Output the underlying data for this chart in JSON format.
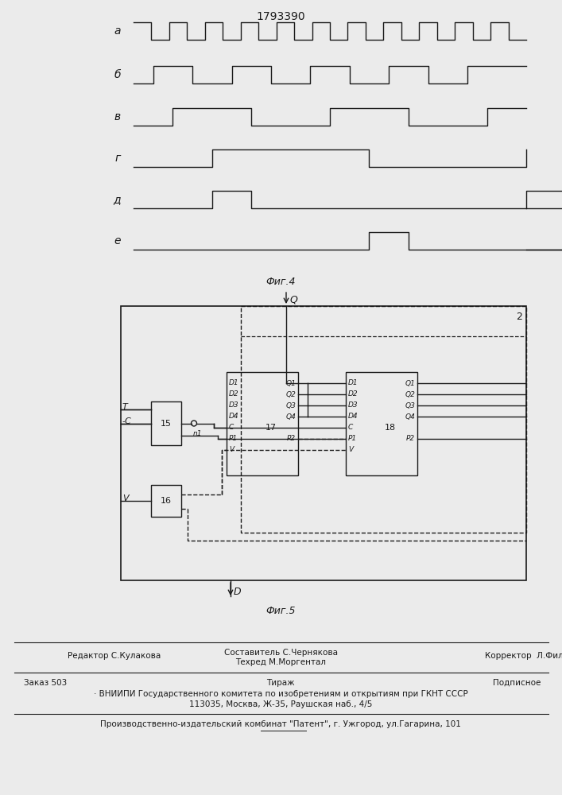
{
  "title": "1793390",
  "fig4_label": "Фиг.4",
  "fig5_label": "Фиг.5",
  "bg_color": "#ebebeb",
  "line_color": "#1a1a1a",
  "footer1_left": "Редактор С.Кулакова",
  "footer1_center1": "Составитель С.Чернякова",
  "footer1_center2": "Техред М.Моргентал",
  "footer1_right": "Корректор  Л.Филь",
  "footer2_left": "Заказ 503",
  "footer2_center": "Тираж",
  "footer2_right": "Подписное",
  "footer3": "· ВНИИПИ Государственного комитета по изобретениям и открытиям при ГКНТ СССР",
  "footer4": "113035, Москва, Ж-35, Раушская наб., 4/5",
  "footer5": "Производственно-издательский комбинат \"Патент\", г. Ужгород, ул.Гагарина, 101"
}
